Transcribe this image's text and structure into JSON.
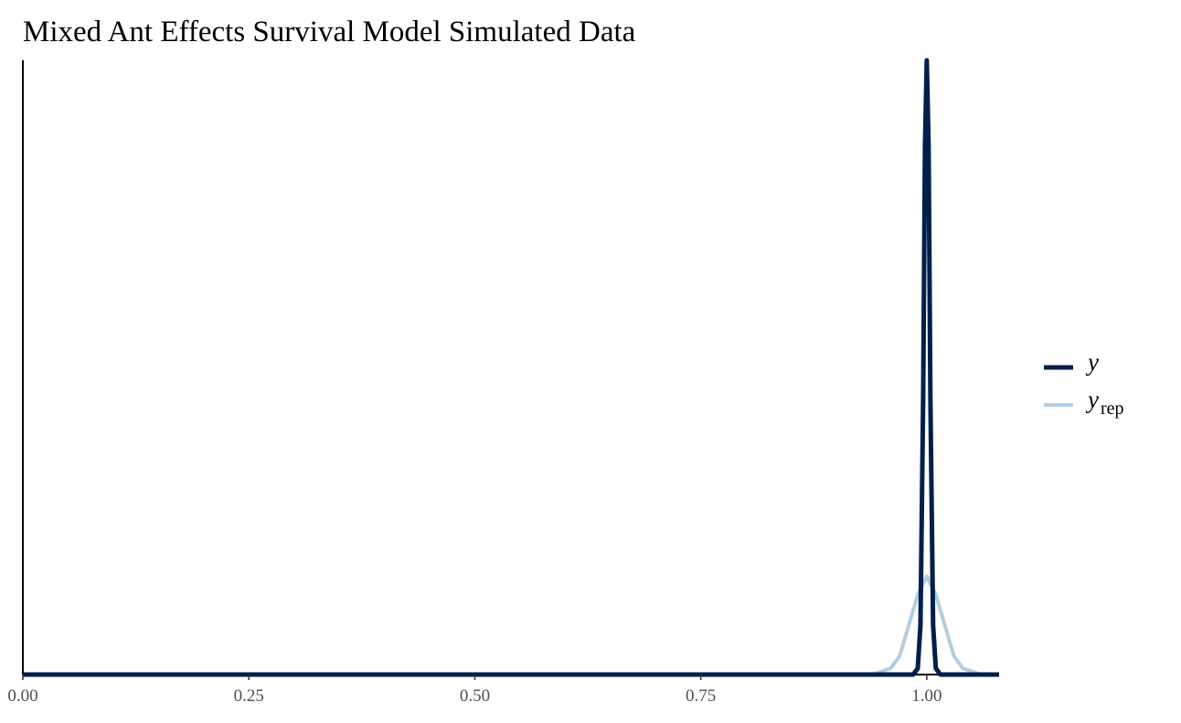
{
  "chart_data": {
    "type": "line",
    "title": "Mixed Ant Effects Survival Model Simulated Data",
    "xlabel": "",
    "ylabel": "",
    "xlim": [
      0.0,
      1.08
    ],
    "ylim": [
      0,
      1.0
    ],
    "x_ticks": [
      0.0,
      0.25,
      0.5,
      0.75,
      1.0
    ],
    "x_tick_labels": [
      "0.00",
      "0.25",
      "0.50",
      "0.75",
      "1.00"
    ],
    "y_ticks_shown": false,
    "grid": false,
    "legend_position": "right",
    "series": [
      {
        "name": "y",
        "color": "#011f4b",
        "x": [
          0.0,
          0.985,
          0.99,
          0.993,
          0.996,
          0.998,
          1.0,
          1.002,
          1.004,
          1.007,
          1.01,
          1.015,
          1.08
        ],
        "values": [
          0,
          0,
          0.01,
          0.08,
          0.45,
          0.86,
          1.0,
          0.86,
          0.45,
          0.08,
          0.01,
          0,
          0
        ]
      },
      {
        "name": "y",
        "name_sub": "rep",
        "color": "#b3cde0",
        "x": [
          0.0,
          0.94,
          0.96,
          0.97,
          0.98,
          0.99,
          1.0,
          1.01,
          1.02,
          1.03,
          1.04,
          1.06,
          1.08
        ],
        "values": [
          0,
          0,
          0.01,
          0.03,
          0.08,
          0.13,
          0.16,
          0.13,
          0.08,
          0.03,
          0.01,
          0,
          0
        ]
      }
    ]
  }
}
